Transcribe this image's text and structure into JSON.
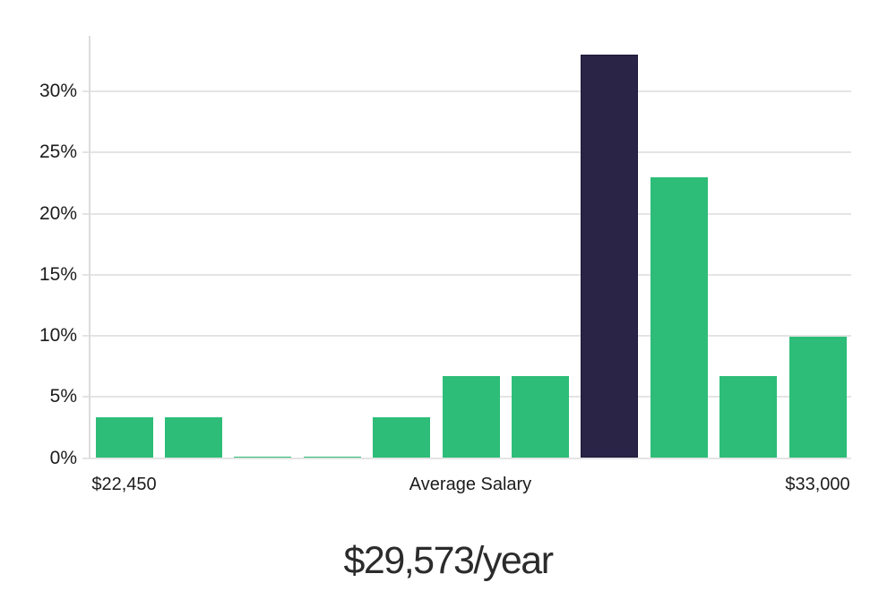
{
  "chart_data": {
    "type": "bar",
    "title": "$29,573/year",
    "xlabel": "",
    "ylabel": "",
    "grid": true,
    "legend": "none",
    "ylim": [
      0,
      34.5
    ],
    "y_ticks": [
      {
        "value": 0,
        "label": "0%"
      },
      {
        "value": 5,
        "label": "5%"
      },
      {
        "value": 10,
        "label": "10%"
      },
      {
        "value": 15,
        "label": "15%"
      },
      {
        "value": 20,
        "label": "20%"
      },
      {
        "value": 25,
        "label": "25%"
      },
      {
        "value": 30,
        "label": "30%"
      }
    ],
    "x_tick_labels": [
      "$22,450",
      "Average Salary",
      "$33,000"
    ],
    "values": [
      3.3,
      3.3,
      0.1,
      0.1,
      3.3,
      6.7,
      6.7,
      33.0,
      23.0,
      6.7,
      9.9
    ],
    "highlight_index": 7,
    "colors": {
      "bar": "#2dbd78",
      "highlight": "#2a2547",
      "highlight_border": "#1e1a38",
      "gridline": "#e4e4e4",
      "axis_line": "#dcdcdc",
      "tick_text": "#1c1c1c",
      "title_text": "#2b2b2b"
    }
  }
}
